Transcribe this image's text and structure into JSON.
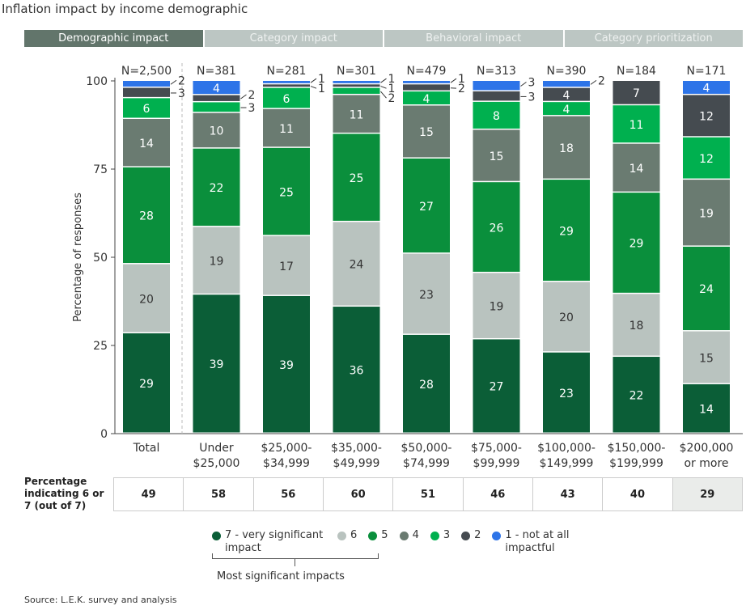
{
  "title": "Inflation impact by income demographic",
  "tabs": [
    {
      "label": "Demographic impact",
      "active": true
    },
    {
      "label": "Category impact",
      "active": false
    },
    {
      "label": "Behavioral impact",
      "active": false
    },
    {
      "label": "Category prioritization",
      "active": false
    }
  ],
  "chart_data": {
    "type": "bar",
    "stacked": true,
    "ylabel": "Percentage of responses",
    "ylim": [
      0,
      100
    ],
    "yticks": [
      0,
      25,
      50,
      75,
      100
    ],
    "categories": [
      "Total",
      "Under\n$25,000",
      "$25,000-\n$34,999",
      "$35,000-\n$49,999",
      "$50,000-\n$74,999",
      "$75,000-\n$99,999",
      "$100,000-\n$149,999",
      "$150,000-\n$199,999",
      "$200,000\nor more"
    ],
    "sample_sizes": [
      "N=2,500",
      "N=381",
      "N=281",
      "N=301",
      "N=479",
      "N=313",
      "N=390",
      "N=184",
      "N=171"
    ],
    "series": [
      {
        "name": "7 - very significant impact",
        "color": "#0b5e37",
        "values": [
          29,
          39,
          39,
          36,
          28,
          27,
          23,
          22,
          14
        ]
      },
      {
        "name": "6",
        "color": "#b9c3bf",
        "values": [
          20,
          19,
          17,
          24,
          23,
          19,
          20,
          18,
          15
        ]
      },
      {
        "name": "5",
        "color": "#0a8f3c",
        "values": [
          28,
          22,
          25,
          25,
          27,
          26,
          29,
          29,
          24
        ]
      },
      {
        "name": "4",
        "color": "#6a7b71",
        "values": [
          14,
          10,
          11,
          11,
          15,
          15,
          18,
          14,
          19
        ]
      },
      {
        "name": "3",
        "color": "#00b04f",
        "values": [
          6,
          3,
          6,
          2,
          4,
          8,
          4,
          11,
          12
        ]
      },
      {
        "name": "2",
        "color": "#454b50",
        "values": [
          3,
          2,
          1,
          1,
          2,
          3,
          4,
          7,
          12
        ]
      },
      {
        "name": "1 - not at all impactful",
        "color": "#2d74e8",
        "values": [
          2,
          4,
          1,
          1,
          1,
          3,
          2,
          0,
          4
        ]
      }
    ],
    "legend_placement": "bottom",
    "grid": false
  },
  "table": {
    "label": "Percentage indicating 6 or 7 (out of 7)",
    "values": [
      "49",
      "58",
      "56",
      "60",
      "51",
      "46",
      "43",
      "40",
      "29"
    ]
  },
  "legend": {
    "items": [
      {
        "label": "7 - very significant impact",
        "color": "#0b5e37"
      },
      {
        "label": "6",
        "color": "#b9c3bf"
      },
      {
        "label": "5",
        "color": "#0a8f3c"
      },
      {
        "label": "4",
        "color": "#6a7b71"
      },
      {
        "label": "3",
        "color": "#00b04f"
      },
      {
        "label": "2",
        "color": "#454b50"
      },
      {
        "label": "1 - not at all impactful",
        "color": "#2d74e8"
      }
    ],
    "bracket_label": "Most significant impacts"
  },
  "source": "Source: L.E.K. survey and analysis"
}
